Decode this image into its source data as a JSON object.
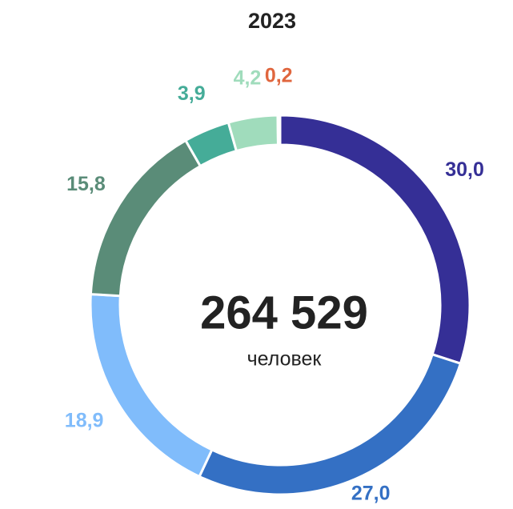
{
  "chart_data": {
    "type": "donut",
    "title": "2023",
    "center_value": "264 529",
    "center_unit": "человек",
    "categories": [
      null,
      null,
      null,
      null,
      null,
      null,
      null
    ],
    "values": [
      30.0,
      27.0,
      18.9,
      15.8,
      3.9,
      4.2,
      0.2
    ],
    "value_labels": [
      "30,0",
      "27,0",
      "18,9",
      "15,8",
      "3,9",
      "4,2",
      "0,2"
    ],
    "colors": [
      "#352f96",
      "#3470c4",
      "#80bcfb",
      "#5a8c78",
      "#45ac98",
      "#a0dcbc",
      "#e0663e"
    ]
  }
}
